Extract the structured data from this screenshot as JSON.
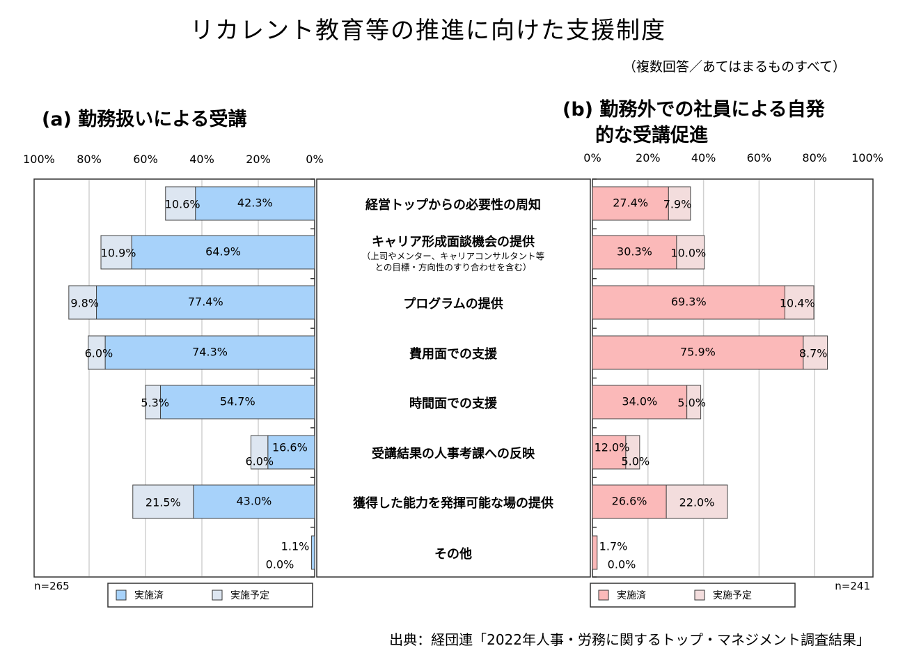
{
  "chart_data": {
    "type": "bar",
    "title": "リカレント教育等の推進に向けた支援制度",
    "subtitle": "（複数回答／あてはまるものすべて）",
    "source": "出典：経団連「2022年人事・労務に関するトップ・マネジメント調査結果」",
    "categories": [
      {
        "label": "経営トップからの必要性の周知",
        "note": []
      },
      {
        "label": "キャリア形成面談機会の提供",
        "note": [
          "（上司やメンター、キャリアコンサルタント等",
          "との目標・方向性のすり合わせを含む）"
        ]
      },
      {
        "label": "プログラムの提供",
        "note": []
      },
      {
        "label": "費用面での支援",
        "note": []
      },
      {
        "label": "時間面での支援",
        "note": []
      },
      {
        "label": "受講結果の人事考課への反映",
        "note": []
      },
      {
        "label": "獲得した能力を発揮可能な場の提供",
        "note": []
      },
      {
        "label": "その他",
        "note": []
      }
    ],
    "panels": [
      {
        "title": "(a) 勤務扱いによる受講",
        "n": "n=265",
        "direction": "left",
        "xlim": [
          0,
          100
        ],
        "ticks": [
          "100%",
          "80%",
          "60%",
          "40%",
          "20%",
          "0%"
        ],
        "colors": {
          "done": "#a7d2fa",
          "planned": "#dde6f1"
        },
        "series": [
          {
            "name": "実施済",
            "values": [
              42.3,
              64.9,
              77.4,
              74.3,
              54.7,
              16.6,
              43.0,
              1.1
            ]
          },
          {
            "name": "実施予定",
            "values": [
              10.6,
              10.9,
              9.8,
              6.0,
              5.3,
              6.0,
              21.5,
              0.0
            ]
          }
        ],
        "labels_done": [
          "42.3%",
          "64.9%",
          "77.4%",
          "74.3%",
          "54.7%",
          "16.6%",
          "43.0%",
          "1.1%"
        ],
        "labels_planned": [
          "10.6%",
          "10.9%",
          "9.8%",
          "6.0%",
          "5.3%",
          "6.0%",
          "21.5%",
          "0.0%"
        ]
      },
      {
        "title": "(b) 勤務外での社員による自発的な受講促進",
        "title_lines": [
          "(b) 勤務外での社員による自発",
          "的な受講促進"
        ],
        "n": "n=241",
        "direction": "right",
        "xlim": [
          0,
          100
        ],
        "ticks": [
          "0%",
          "20%",
          "40%",
          "60%",
          "80%",
          "100%"
        ],
        "colors": {
          "done": "#fbb9b9",
          "planned": "#f3dddd"
        },
        "series": [
          {
            "name": "実施済",
            "values": [
              27.4,
              30.3,
              69.3,
              75.9,
              34.0,
              12.0,
              26.6,
              1.7
            ]
          },
          {
            "name": "実施予定",
            "values": [
              7.9,
              10.0,
              10.4,
              8.7,
              5.0,
              5.0,
              22.0,
              0.0
            ]
          }
        ],
        "labels_done": [
          "27.4%",
          "30.3%",
          "69.3%",
          "75.9%",
          "34.0%",
          "12.0%",
          "26.6%",
          "1.7%"
        ],
        "labels_planned": [
          "7.9%",
          "10.0%",
          "10.4%",
          "8.7%",
          "5.0%",
          "5.0%",
          "22.0%",
          "0.0%"
        ]
      }
    ],
    "legend": [
      "実施済",
      "実施予定"
    ]
  }
}
